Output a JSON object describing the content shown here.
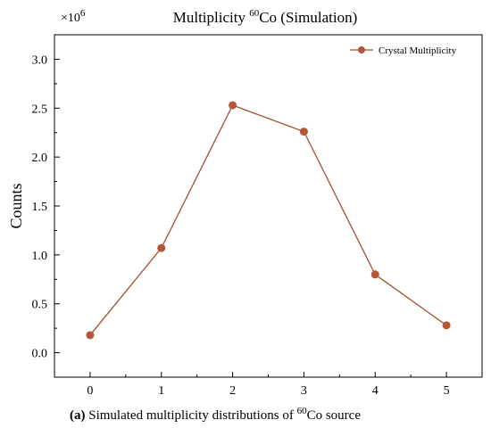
{
  "chart_data": {
    "type": "line",
    "title": "Multiplicity ",
    "title_sup": "60",
    "title_rest": "Co (Simulation)",
    "ylabel": "Counts",
    "xlabel": "",
    "y_multiplier_prefix": "×10",
    "y_multiplier_exp": "6",
    "x": [
      0,
      1,
      2,
      3,
      4,
      5
    ],
    "xlim": [
      -0.5,
      5.5
    ],
    "ylim": [
      -0.25,
      3.25
    ],
    "x_ticks": [
      "0",
      "1",
      "2",
      "3",
      "4",
      "5"
    ],
    "y_ticks": [
      "0.0",
      "0.5",
      "1.0",
      "1.5",
      "2.0",
      "2.5",
      "3.0"
    ],
    "series": [
      {
        "name": "Crystal Multiplicity",
        "color": "#a0522d",
        "values": [
          0.18,
          1.07,
          2.53,
          2.26,
          0.8,
          0.28
        ]
      }
    ],
    "legend_position": "top-right",
    "grid": false
  },
  "caption": {
    "label": "(a)",
    "text": " Simulated multiplicity distributions of ",
    "sup": "60",
    "rest": "Co source"
  }
}
